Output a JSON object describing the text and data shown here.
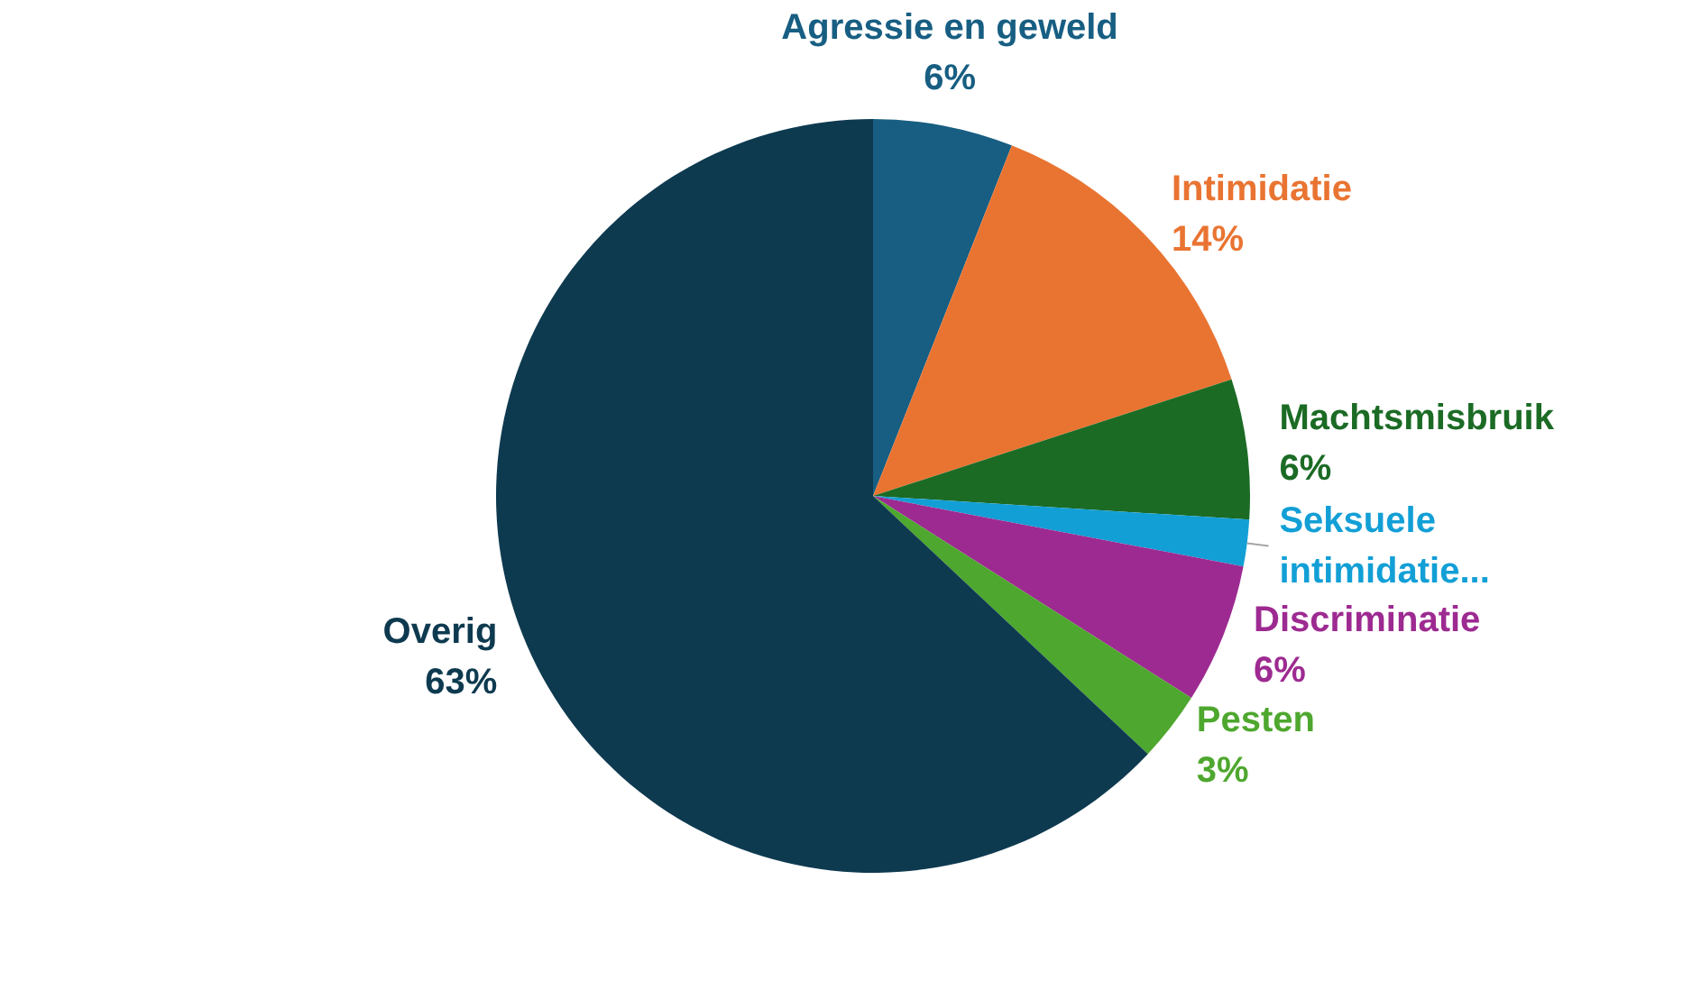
{
  "chart_data": {
    "type": "pie",
    "categories": [
      "Agressie en geweld",
      "Intimidatie",
      "Machtsmisbruik",
      "Seksuele intimidatie...",
      "Discriminatie",
      "Pesten",
      "Overig"
    ],
    "values": [
      6,
      14,
      6,
      2,
      6,
      3,
      63
    ],
    "colors": [
      "#175e82",
      "#e97432",
      "#1b6b25",
      "#129fd6",
      "#9d2a91",
      "#4ea72e",
      "#0e3a50"
    ],
    "value_labels": [
      "6%",
      "14%",
      "6%",
      null,
      "6%",
      "3%",
      "63%"
    ]
  }
}
